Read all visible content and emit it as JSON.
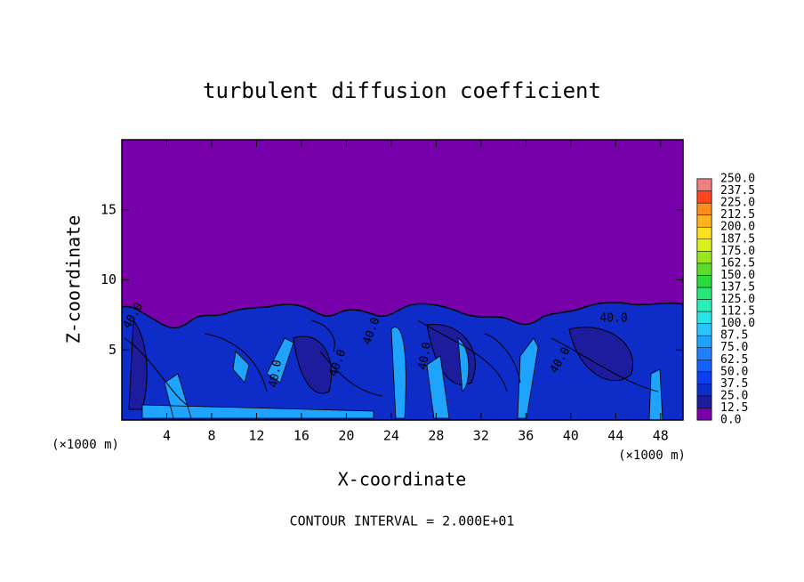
{
  "chart_data": {
    "type": "contour",
    "title": "turbulent diffusion coefficient",
    "x_label": "X-coordinate",
    "y_label": "Z-coordinate",
    "x_unit": "(×1000 m)",
    "y_unit": "(×1000 m)",
    "footer": "CONTOUR INTERVAL = 2.000E+01",
    "xlim": [
      0,
      50
    ],
    "ylim": [
      0,
      20
    ],
    "xticks": [
      4,
      8,
      12,
      16,
      20,
      24,
      28,
      32,
      36,
      40,
      44,
      48
    ],
    "yticks": [
      5,
      10,
      15
    ],
    "colorbar": {
      "levels": [
        {
          "value": 0,
          "label": "0.0"
        },
        {
          "value": 12.5,
          "label": "12.5"
        },
        {
          "value": 25,
          "label": "25.0"
        },
        {
          "value": 37.5,
          "label": "37.5"
        },
        {
          "value": 50,
          "label": "50.0"
        },
        {
          "value": 62.5,
          "label": "62.5"
        },
        {
          "value": 75,
          "label": "75.0"
        },
        {
          "value": 87.5,
          "label": "87.5"
        },
        {
          "value": 100,
          "label": "100.0"
        },
        {
          "value": 112.5,
          "label": "112.5"
        },
        {
          "value": 125,
          "label": "125.0"
        },
        {
          "value": 137.5,
          "label": "137.5"
        },
        {
          "value": 150,
          "label": "150.0"
        },
        {
          "value": 162.5,
          "label": "162.5"
        },
        {
          "value": 175,
          "label": "175.0"
        },
        {
          "value": 187.5,
          "label": "187.5"
        },
        {
          "value": 200,
          "label": "200.0"
        },
        {
          "value": 212.5,
          "label": "212.5"
        },
        {
          "value": 225,
          "label": "225.0"
        },
        {
          "value": 237.5,
          "label": "237.5"
        },
        {
          "value": 250,
          "label": "250.0"
        }
      ],
      "colors": [
        "#7700aa",
        "#1c1c9c",
        "#0d2cc8",
        "#0a40f0",
        "#1460ff",
        "#1e80ff",
        "#1ea4ff",
        "#28c8ff",
        "#28e6e6",
        "#28f0b4",
        "#28e678",
        "#28dc3c",
        "#5adc28",
        "#9ae61e",
        "#d8f01e",
        "#ffe01e",
        "#ffb41e",
        "#ff8c1e",
        "#ff461e",
        "#f08080"
      ]
    },
    "contour_labels": [
      "40.0",
      "40.0",
      "40.0",
      "40.0",
      "40.0",
      "40.0",
      "40.0"
    ]
  }
}
